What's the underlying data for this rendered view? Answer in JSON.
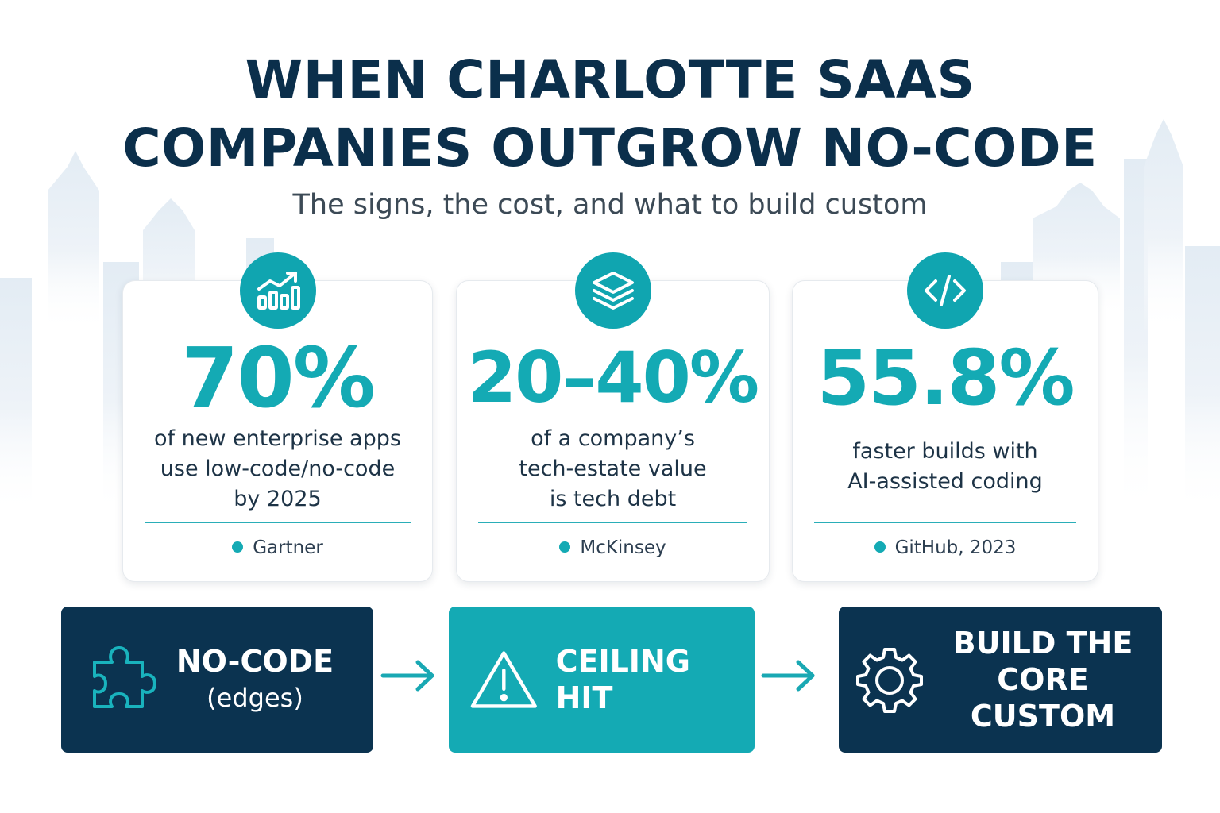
{
  "title": {
    "line1": "WHEN CHARLOTTE SAAS",
    "line2": "COMPANIES OUTGROW NO-CODE"
  },
  "subtitle": "The signs, the cost, and what to build custom",
  "colors": {
    "navy": "#0b3350",
    "teal": "#14aab4",
    "title": "#0b2f4b",
    "skyline": "#e8eff5"
  },
  "stats": [
    {
      "icon": "bar-chart-growth-icon",
      "value": "70%",
      "desc_lines": [
        "of new enterprise apps",
        "use low-code/no-code",
        "by 2025"
      ],
      "source": "Gartner"
    },
    {
      "icon": "layers-icon",
      "value": "20–40%",
      "desc_lines": [
        "of a company’s",
        "tech-estate value",
        "is tech debt"
      ],
      "source": "McKinsey"
    },
    {
      "icon": "code-brackets-icon",
      "value": "55.8%",
      "desc_lines": [
        "faster builds with",
        "AI-assisted coding"
      ],
      "source": "GitHub, 2023"
    }
  ],
  "flow": [
    {
      "icon": "puzzle-piece-icon",
      "title": "NO-CODE",
      "sub": "(edges)"
    },
    {
      "icon": "warning-triangle-icon",
      "title": "CEILING HIT"
    },
    {
      "icon": "gear-icon",
      "line1": "BUILD THE",
      "line2": "CORE CUSTOM"
    }
  ]
}
